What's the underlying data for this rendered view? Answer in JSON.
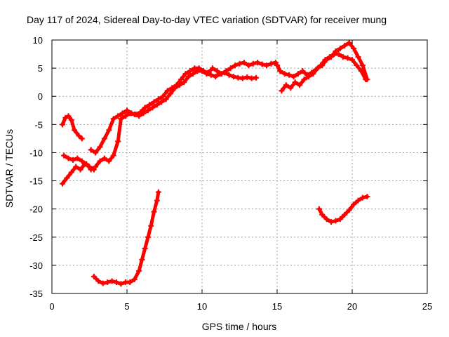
{
  "chart_data": {
    "type": "scatter",
    "title": "Day 117 of 2024, Sidereal Day-to-day VTEC variation (SDTVAR) for receiver mung",
    "xlabel": "GPS time / hours",
    "ylabel": "SDTVAR / TECUs",
    "xlim": [
      0,
      25
    ],
    "ylim": [
      -35,
      10
    ],
    "xticks": [
      0,
      5,
      10,
      15,
      20,
      25
    ],
    "yticks": [
      10,
      5,
      0,
      -5,
      -10,
      -15,
      -20,
      -25,
      -30,
      -35
    ],
    "grid": true,
    "legend": "none",
    "color": "#ff0000",
    "series": [
      {
        "x": [
          0.7,
          0.9,
          1.1,
          1.3,
          1.5,
          1.8,
          2.0
        ],
        "y": [
          -5.0,
          -3.8,
          -3.5,
          -4.2,
          -6.0,
          -7.0,
          -7.5
        ]
      },
      {
        "x": [
          0.8,
          1.1,
          1.4,
          1.7,
          2.0,
          2.3,
          2.6,
          2.9,
          3.2,
          3.5,
          3.8,
          4.1,
          4.4,
          4.6,
          4.9,
          5.2,
          5.5,
          5.8,
          6.1,
          6.4,
          6.7,
          7.0,
          7.3,
          7.6,
          7.9,
          8.2,
          8.5,
          8.8,
          9.1,
          9.4,
          9.7,
          10.0,
          10.3,
          10.6,
          10.9,
          11.2,
          11.5,
          11.8,
          12.1,
          12.4,
          12.7,
          13.0,
          13.3,
          13.6
        ],
        "y": [
          -10.5,
          -11.0,
          -11.3,
          -11.0,
          -11.5,
          -12.0,
          -13.0,
          -12.5,
          -11.5,
          -11.0,
          -11.5,
          -10.5,
          -8.0,
          -4.0,
          -3.5,
          -3.0,
          -3.2,
          -3.5,
          -3.0,
          -2.5,
          -2.0,
          -1.5,
          -1.0,
          -0.5,
          0.5,
          1.5,
          2.0,
          2.5,
          3.5,
          4.0,
          4.5,
          4.5,
          4.0,
          3.8,
          3.5,
          4.0,
          4.2,
          3.8,
          3.5,
          3.3,
          3.2,
          3.4,
          3.2,
          3.3
        ]
      },
      {
        "x": [
          0.7,
          1.0,
          1.3,
          1.6,
          1.9,
          2.2,
          2.5,
          2.8
        ],
        "y": [
          -15.5,
          -14.5,
          -13.5,
          -12.5,
          -13.0,
          -12.0,
          -12.5,
          -13.0
        ]
      },
      {
        "x": [
          2.6,
          2.9,
          3.2,
          3.5,
          3.8,
          4.1,
          4.4,
          4.7,
          5.0,
          5.3,
          5.6,
          5.9,
          6.2,
          6.5,
          6.8,
          7.1,
          7.4,
          7.7,
          8.0,
          8.3,
          8.6,
          8.9,
          9.2,
          9.5,
          9.8,
          10.1,
          10.4,
          10.7,
          11.0,
          11.3,
          11.6,
          11.9,
          12.2,
          12.5,
          12.8,
          13.1,
          13.4,
          13.7,
          14.0,
          14.3,
          14.6,
          14.9,
          15.2
        ],
        "y": [
          -9.5,
          -10.0,
          -9.0,
          -7.5,
          -6.0,
          -4.0,
          -3.5,
          -3.0,
          -2.5,
          -3.0,
          -3.2,
          -2.8,
          -2.0,
          -1.5,
          -1.0,
          -0.5,
          0.0,
          1.0,
          1.5,
          2.0,
          3.0,
          4.0,
          4.5,
          5.0,
          5.0,
          4.5,
          4.2,
          5.0,
          4.5,
          4.0,
          4.5,
          5.0,
          5.5,
          5.8,
          6.0,
          5.5,
          5.8,
          6.0,
          5.7,
          5.5,
          5.8,
          6.0,
          4.5
        ]
      },
      {
        "x": [
          15.0,
          15.2,
          15.5,
          15.8,
          16.1,
          16.4,
          16.7,
          17.0,
          17.3,
          17.6,
          17.9,
          18.2,
          18.5,
          18.8,
          19.1,
          19.4,
          19.7,
          20.0,
          20.3,
          20.6,
          20.9
        ],
        "y": [
          5.5,
          4.5,
          4.0,
          3.8,
          3.5,
          4.0,
          4.5,
          3.8,
          4.2,
          4.8,
          5.5,
          6.5,
          7.0,
          7.5,
          7.5,
          7.0,
          6.8,
          6.5,
          5.5,
          4.5,
          3.0
        ]
      },
      {
        "x": [
          15.3,
          15.6,
          15.9,
          16.2,
          16.5,
          16.8,
          17.1,
          17.4,
          17.7,
          18.0,
          18.3,
          18.6,
          18.9,
          19.2,
          19.5,
          19.8,
          20.1,
          20.4,
          20.7,
          21.0
        ],
        "y": [
          1.0,
          2.0,
          1.5,
          2.5,
          2.0,
          3.0,
          3.5,
          4.0,
          5.0,
          5.5,
          6.5,
          7.0,
          8.0,
          8.5,
          9.0,
          9.5,
          8.5,
          7.0,
          5.5,
          3.0
        ]
      },
      {
        "x": [
          2.8,
          3.1,
          3.4,
          3.7,
          4.0,
          4.3,
          4.6,
          4.9,
          5.2,
          5.5,
          5.8,
          6.0,
          6.2,
          6.4,
          6.6,
          6.8,
          7.0,
          7.1
        ],
        "y": [
          -32.0,
          -32.8,
          -33.2,
          -33.0,
          -32.8,
          -33.0,
          -33.3,
          -33.0,
          -33.0,
          -32.5,
          -31.0,
          -29.0,
          -27.0,
          -25.0,
          -23.0,
          -20.5,
          -18.5,
          -17.0
        ]
      },
      {
        "x": [
          17.8,
          18.0,
          18.3,
          18.6,
          18.9,
          19.2,
          19.5,
          19.8,
          20.1,
          20.4,
          20.7,
          21.0
        ],
        "y": [
          -20.0,
          -21.0,
          -21.8,
          -22.3,
          -22.1,
          -21.8,
          -21.0,
          -20.2,
          -19.2,
          -18.5,
          -18.0,
          -17.8
        ]
      }
    ]
  }
}
